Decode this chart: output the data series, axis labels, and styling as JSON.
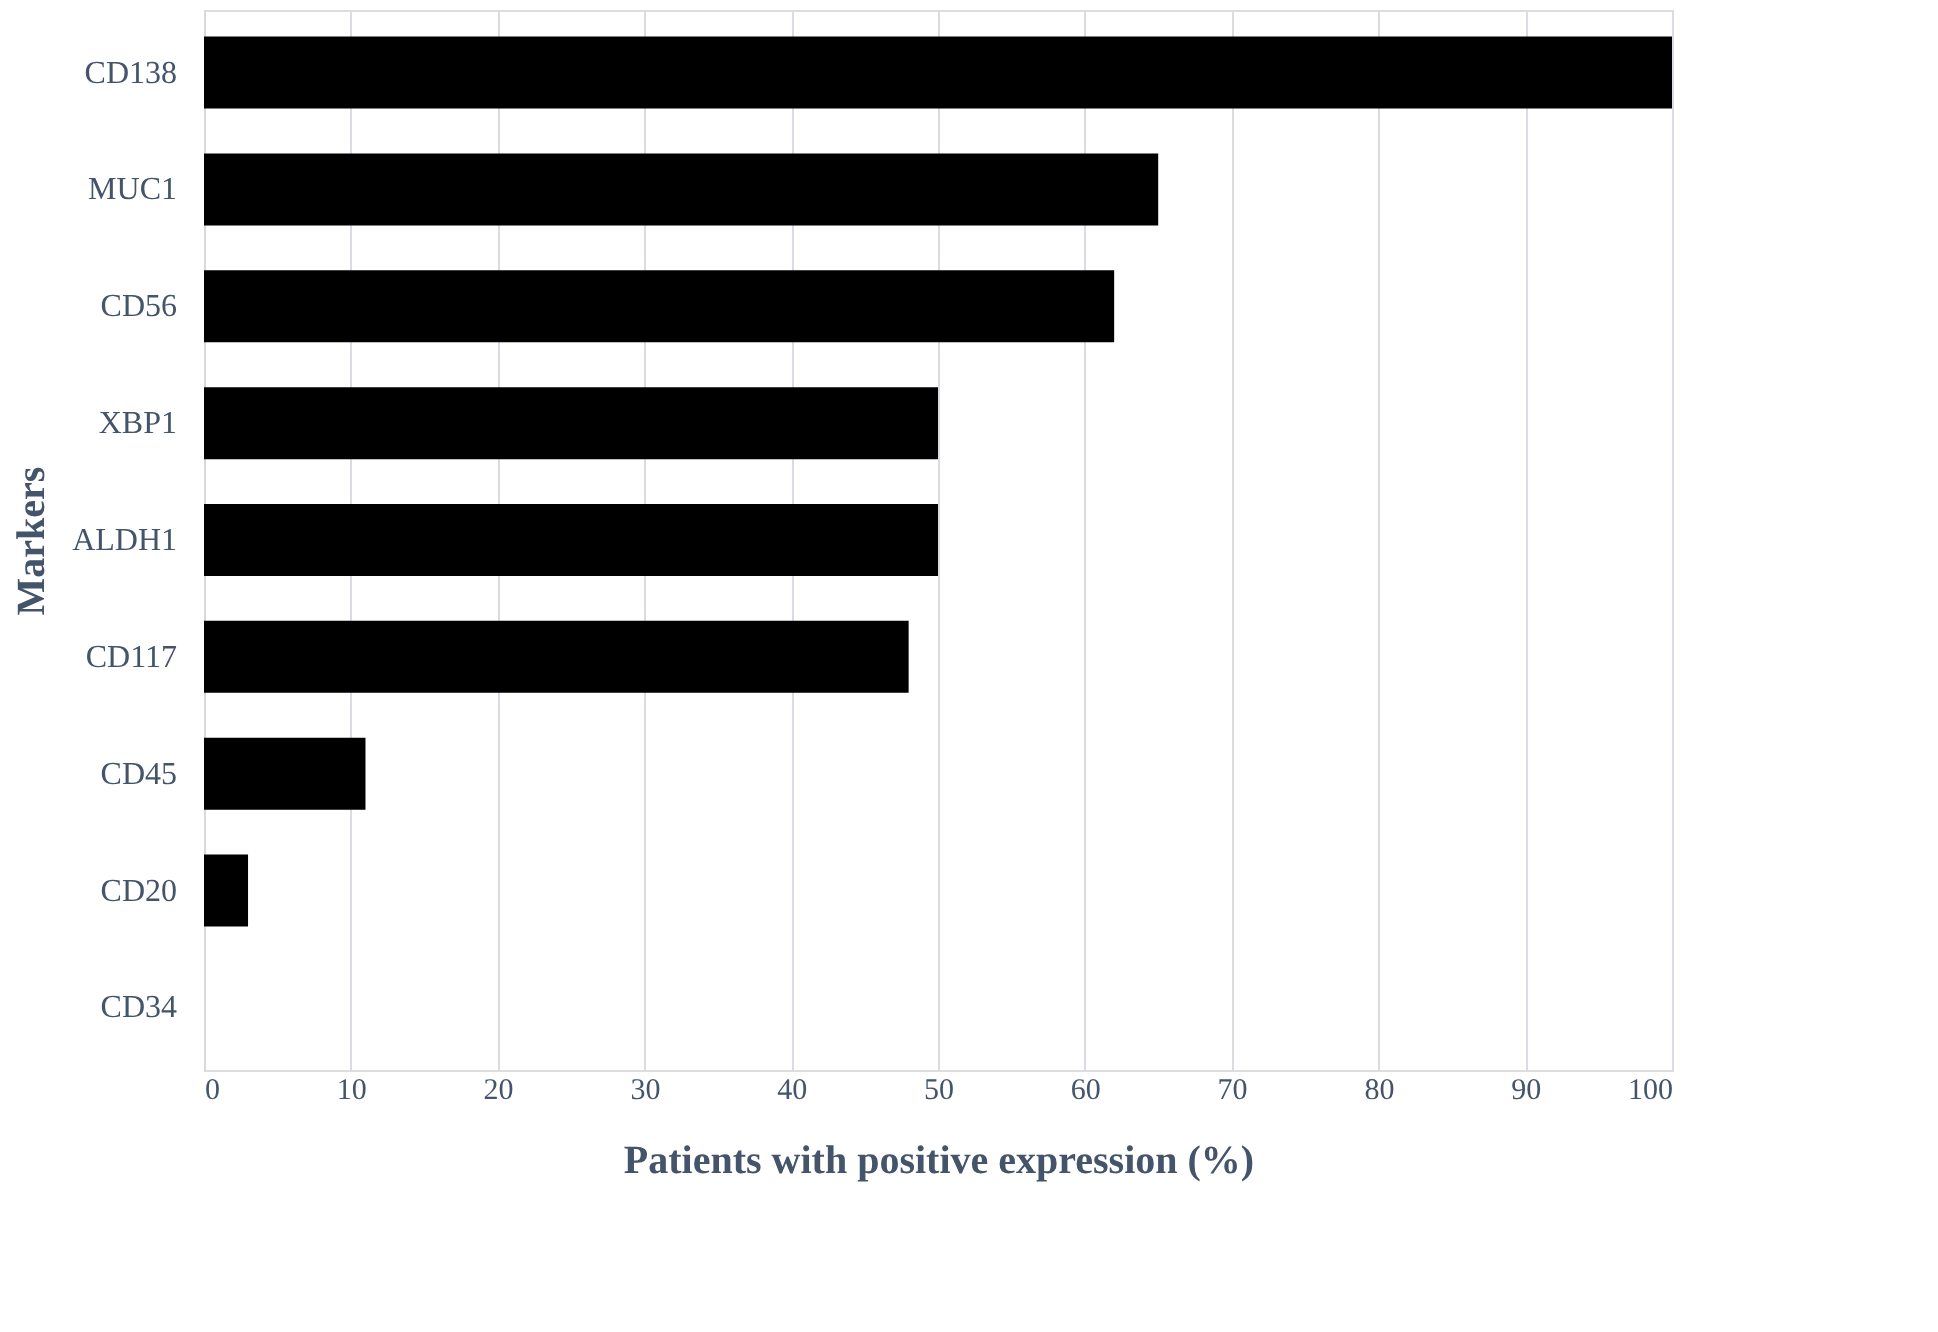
{
  "chart_data": {
    "type": "bar",
    "orientation": "horizontal",
    "xlabel": "Patients with positive expression (%)",
    "ylabel": "Markers",
    "categories": [
      "CD138",
      "MUC1",
      "CD56",
      "XBP1",
      "ALDH1",
      "CD117",
      "CD45",
      "CD20",
      "CD34"
    ],
    "values": [
      100,
      65,
      62,
      50,
      50,
      48,
      11,
      3,
      0
    ],
    "color": "#000000",
    "xlim": [
      0,
      100
    ],
    "xticks": [
      0,
      10,
      20,
      30,
      40,
      50,
      60,
      70,
      80,
      90,
      100
    ],
    "grid": "x"
  }
}
